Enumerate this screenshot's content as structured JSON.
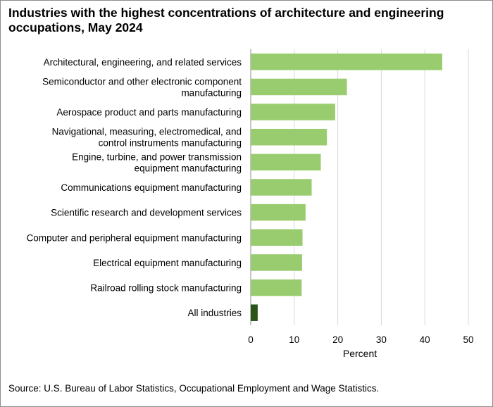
{
  "chart_data": {
    "type": "bar",
    "orientation": "horizontal",
    "title": "Industries with the highest concentrations of architecture and engineering occupations, May 2024",
    "xlabel": "Percent",
    "ylabel": "",
    "xlim": [
      0,
      50
    ],
    "xticks": [
      0,
      10,
      20,
      30,
      40,
      50
    ],
    "grid": "vertical",
    "categories": [
      [
        "Architectural, engineering, and related services"
      ],
      [
        "Semiconductor and other electronic component",
        "manufacturing"
      ],
      [
        "Aerospace product and parts manufacturing"
      ],
      [
        "Navigational, measuring, electromedical, and",
        "control instruments manufacturing"
      ],
      [
        "Engine, turbine, and power transmission",
        "equipment manufacturing"
      ],
      [
        "Communications equipment manufacturing"
      ],
      [
        "Scientific research and development services"
      ],
      [
        "Computer and peripheral equipment manufacturing"
      ],
      [
        "Electrical equipment manufacturing"
      ],
      [
        "Railroad rolling stock manufacturing"
      ],
      [
        "All industries"
      ]
    ],
    "values": [
      44.0,
      22.1,
      19.4,
      17.5,
      16.1,
      14.0,
      12.6,
      11.9,
      11.8,
      11.7,
      1.6
    ],
    "colors": [
      "#99cc6f",
      "#99cc6f",
      "#99cc6f",
      "#99cc6f",
      "#99cc6f",
      "#99cc6f",
      "#99cc6f",
      "#99cc6f",
      "#99cc6f",
      "#99cc6f",
      "#2a5418"
    ],
    "gridline_color": "#d9d9d9",
    "axis_color": "#8c8c8c"
  },
  "source": "Source: U.S. Bureau of Labor Statistics, Occupational Employment  and Wage Statistics."
}
